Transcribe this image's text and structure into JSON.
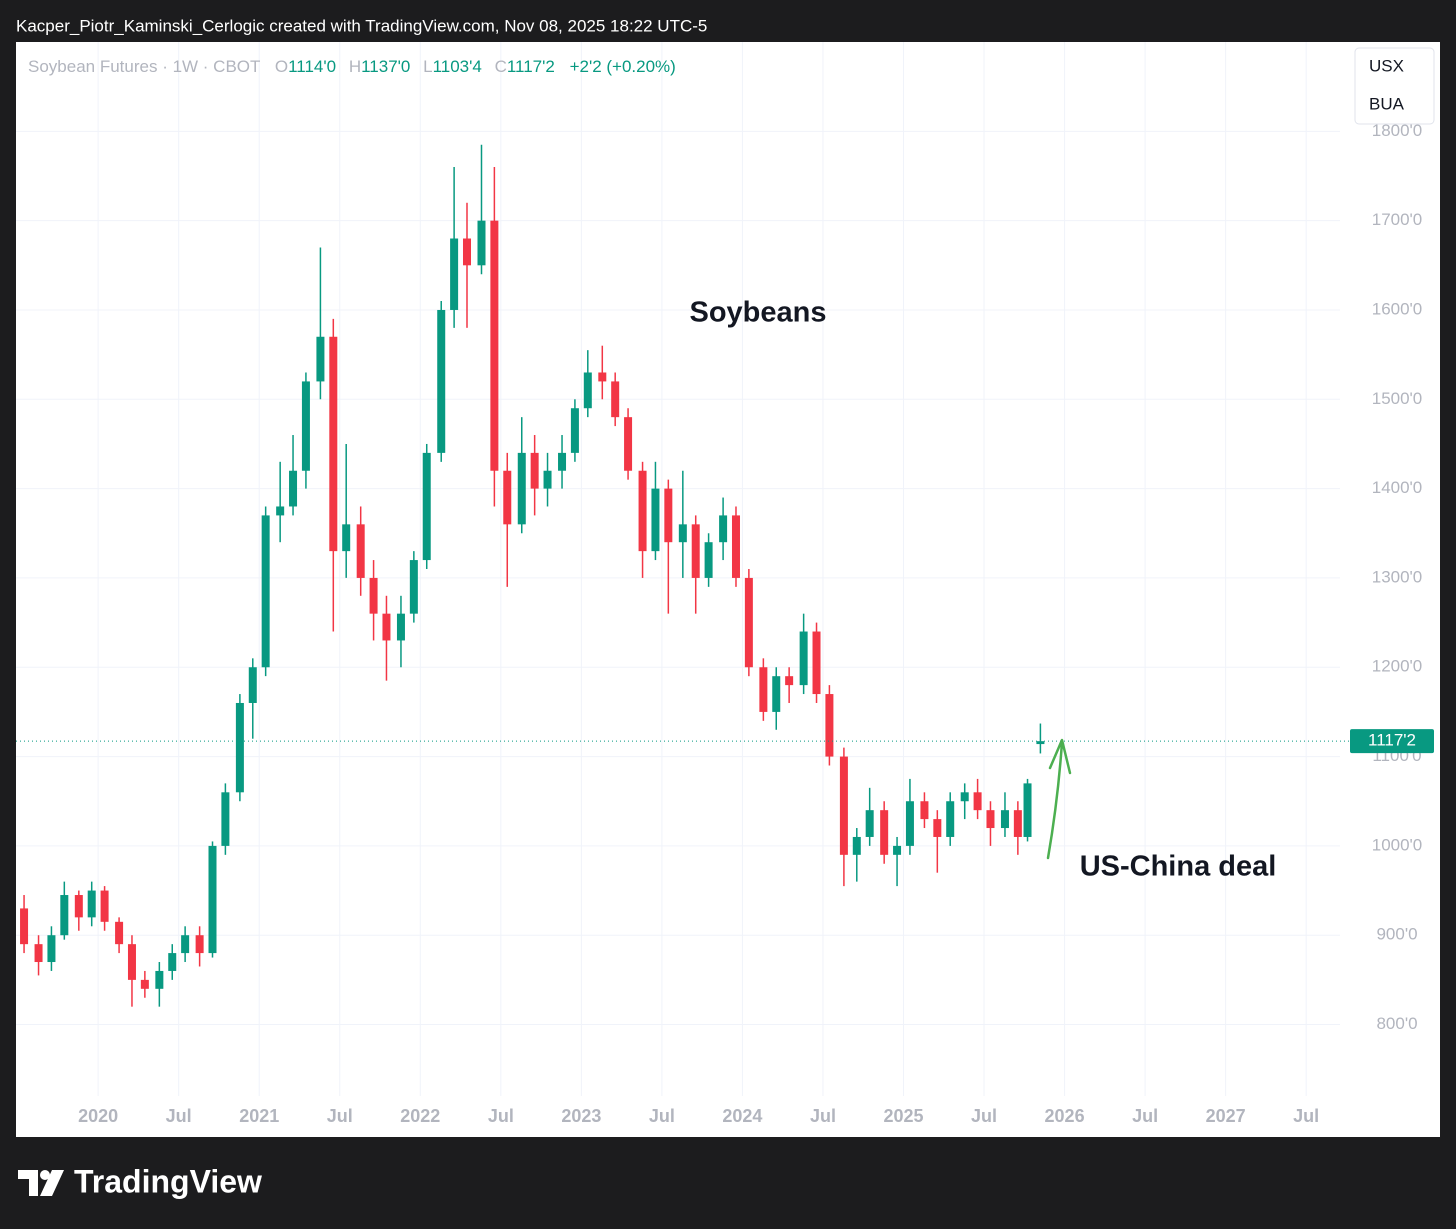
{
  "header": {
    "attribution": "Kacper_Piotr_Kaminski_Cerlogic created with TradingView.com, Nov 08, 2025 18:22 UTC-5"
  },
  "footer": {
    "brand": "TradingView"
  },
  "chart_data": {
    "type": "candlestick",
    "symbol": "Soybean Futures · 1W · CBOT",
    "ohlc_legend": [
      {
        "key": "O",
        "value": "1114'0"
      },
      {
        "key": "H",
        "value": "1137'0"
      },
      {
        "key": "L",
        "value": "1103'4"
      },
      {
        "key": "C",
        "value": "1117'2"
      }
    ],
    "change": "+2'2 (+0.20%)",
    "scale_labels": [
      "USX",
      "BUA"
    ],
    "annotations": [
      "Soybeans",
      "US-China deal"
    ],
    "up_color": "#089981",
    "down_color": "#f23645",
    "last_price": {
      "value": 1117.25,
      "label": "1117'2"
    },
    "x": [
      2019.54,
      2019.63,
      2019.71,
      2019.79,
      2019.88,
      2019.96,
      2020.04,
      2020.13,
      2020.21,
      2020.29,
      2020.38,
      2020.46,
      2020.54,
      2020.63,
      2020.71,
      2020.79,
      2020.88,
      2020.96,
      2021.04,
      2021.13,
      2021.21,
      2021.29,
      2021.38,
      2021.46,
      2021.54,
      2021.63,
      2021.71,
      2021.79,
      2021.88,
      2021.96,
      2022.04,
      2022.13,
      2022.21,
      2022.29,
      2022.38,
      2022.46,
      2022.54,
      2022.63,
      2022.71,
      2022.79,
      2022.88,
      2022.96,
      2023.04,
      2023.13,
      2023.21,
      2023.29,
      2023.38,
      2023.46,
      2023.54,
      2023.63,
      2023.71,
      2023.79,
      2023.88,
      2023.96,
      2024.04,
      2024.13,
      2024.21,
      2024.29,
      2024.38,
      2024.46,
      2024.54,
      2024.63,
      2024.71,
      2024.79,
      2024.88,
      2024.96,
      2025.04,
      2025.13,
      2025.21,
      2025.29,
      2025.38,
      2025.46,
      2025.54,
      2025.63,
      2025.71,
      2025.77,
      2025.85
    ],
    "open": [
      930,
      890,
      870,
      900,
      945,
      920,
      950,
      915,
      890,
      850,
      840,
      860,
      880,
      900,
      880,
      1000,
      1060,
      1160,
      1200,
      1370,
      1380,
      1420,
      1520,
      1570,
      1330,
      1360,
      1300,
      1260,
      1230,
      1260,
      1320,
      1440,
      1600,
      1680,
      1650,
      1700,
      1420,
      1360,
      1440,
      1400,
      1420,
      1440,
      1490,
      1530,
      1520,
      1480,
      1420,
      1330,
      1400,
      1340,
      1360,
      1300,
      1340,
      1370,
      1300,
      1200,
      1150,
      1190,
      1180,
      1240,
      1170,
      1100,
      990,
      1010,
      1040,
      990,
      1000,
      1050,
      1030,
      1010,
      1050,
      1060,
      1040,
      1020,
      1040,
      1010,
      1114
    ],
    "high": [
      945,
      900,
      910,
      960,
      950,
      960,
      955,
      920,
      900,
      860,
      870,
      890,
      910,
      910,
      1005,
      1070,
      1170,
      1210,
      1380,
      1430,
      1460,
      1530,
      1670,
      1590,
      1450,
      1380,
      1320,
      1280,
      1280,
      1330,
      1450,
      1610,
      1760,
      1720,
      1785,
      1760,
      1440,
      1480,
      1460,
      1440,
      1460,
      1500,
      1555,
      1560,
      1530,
      1490,
      1430,
      1430,
      1410,
      1420,
      1370,
      1350,
      1390,
      1380,
      1310,
      1210,
      1200,
      1200,
      1260,
      1250,
      1180,
      1110,
      1020,
      1065,
      1050,
      1010,
      1075,
      1060,
      1040,
      1060,
      1070,
      1075,
      1050,
      1060,
      1050,
      1075,
      1137
    ],
    "low": [
      880,
      855,
      860,
      895,
      905,
      910,
      905,
      880,
      820,
      830,
      820,
      850,
      870,
      865,
      875,
      990,
      1050,
      1120,
      1190,
      1340,
      1370,
      1400,
      1500,
      1240,
      1300,
      1280,
      1230,
      1185,
      1200,
      1250,
      1310,
      1430,
      1580,
      1580,
      1640,
      1380,
      1290,
      1350,
      1370,
      1380,
      1400,
      1430,
      1480,
      1500,
      1470,
      1410,
      1300,
      1320,
      1260,
      1300,
      1260,
      1290,
      1320,
      1290,
      1190,
      1140,
      1130,
      1160,
      1170,
      1160,
      1090,
      955,
      960,
      1000,
      980,
      955,
      990,
      1020,
      970,
      1000,
      1030,
      1030,
      1000,
      1010,
      990,
      1005,
      1103.5
    ],
    "close": [
      890,
      870,
      900,
      945,
      920,
      950,
      915,
      890,
      850,
      840,
      860,
      880,
      900,
      880,
      1000,
      1060,
      1160,
      1200,
      1370,
      1380,
      1420,
      1520,
      1570,
      1330,
      1360,
      1300,
      1260,
      1230,
      1260,
      1320,
      1440,
      1600,
      1680,
      1650,
      1700,
      1420,
      1360,
      1440,
      1400,
      1420,
      1440,
      1490,
      1530,
      1520,
      1480,
      1420,
      1330,
      1400,
      1340,
      1360,
      1300,
      1340,
      1370,
      1300,
      1200,
      1150,
      1190,
      1180,
      1240,
      1170,
      1100,
      990,
      1010,
      1040,
      990,
      1000,
      1050,
      1030,
      1010,
      1050,
      1060,
      1040,
      1020,
      1040,
      1010,
      1070,
      1117.25
    ],
    "xlim": [
      2019.49,
      2027.71
    ],
    "xticks": [
      {
        "value": 2020,
        "label": "2020"
      },
      {
        "value": 2020.5,
        "label": "Jul"
      },
      {
        "value": 2021,
        "label": "2021"
      },
      {
        "value": 2021.5,
        "label": "Jul"
      },
      {
        "value": 2022,
        "label": "2022"
      },
      {
        "value": 2022.5,
        "label": "Jul"
      },
      {
        "value": 2023,
        "label": "2023"
      },
      {
        "value": 2023.5,
        "label": "Jul"
      },
      {
        "value": 2024,
        "label": "2024"
      },
      {
        "value": 2024.5,
        "label": "Jul"
      },
      {
        "value": 2025,
        "label": "2025"
      },
      {
        "value": 2025.5,
        "label": "Jul"
      },
      {
        "value": 2026,
        "label": "2026"
      },
      {
        "value": 2026.5,
        "label": "Jul"
      },
      {
        "value": 2027,
        "label": "2027"
      },
      {
        "value": 2027.5,
        "label": "Jul"
      }
    ],
    "ylim": [
      720,
      1900
    ],
    "yticks": [
      {
        "value": 800,
        "label": "800'0"
      },
      {
        "value": 900,
        "label": "900'0"
      },
      {
        "value": 1000,
        "label": "1000'0"
      },
      {
        "value": 1100,
        "label": "1100'0"
      },
      {
        "value": 1200,
        "label": "1200'0"
      },
      {
        "value": 1300,
        "label": "1300'0"
      },
      {
        "value": 1400,
        "label": "1400'0"
      },
      {
        "value": 1500,
        "label": "1500'0"
      },
      {
        "value": 1600,
        "label": "1600'0"
      },
      {
        "value": 1700,
        "label": "1700'0"
      },
      {
        "value": 1800,
        "label": "1800'0"
      }
    ],
    "grid": true
  }
}
